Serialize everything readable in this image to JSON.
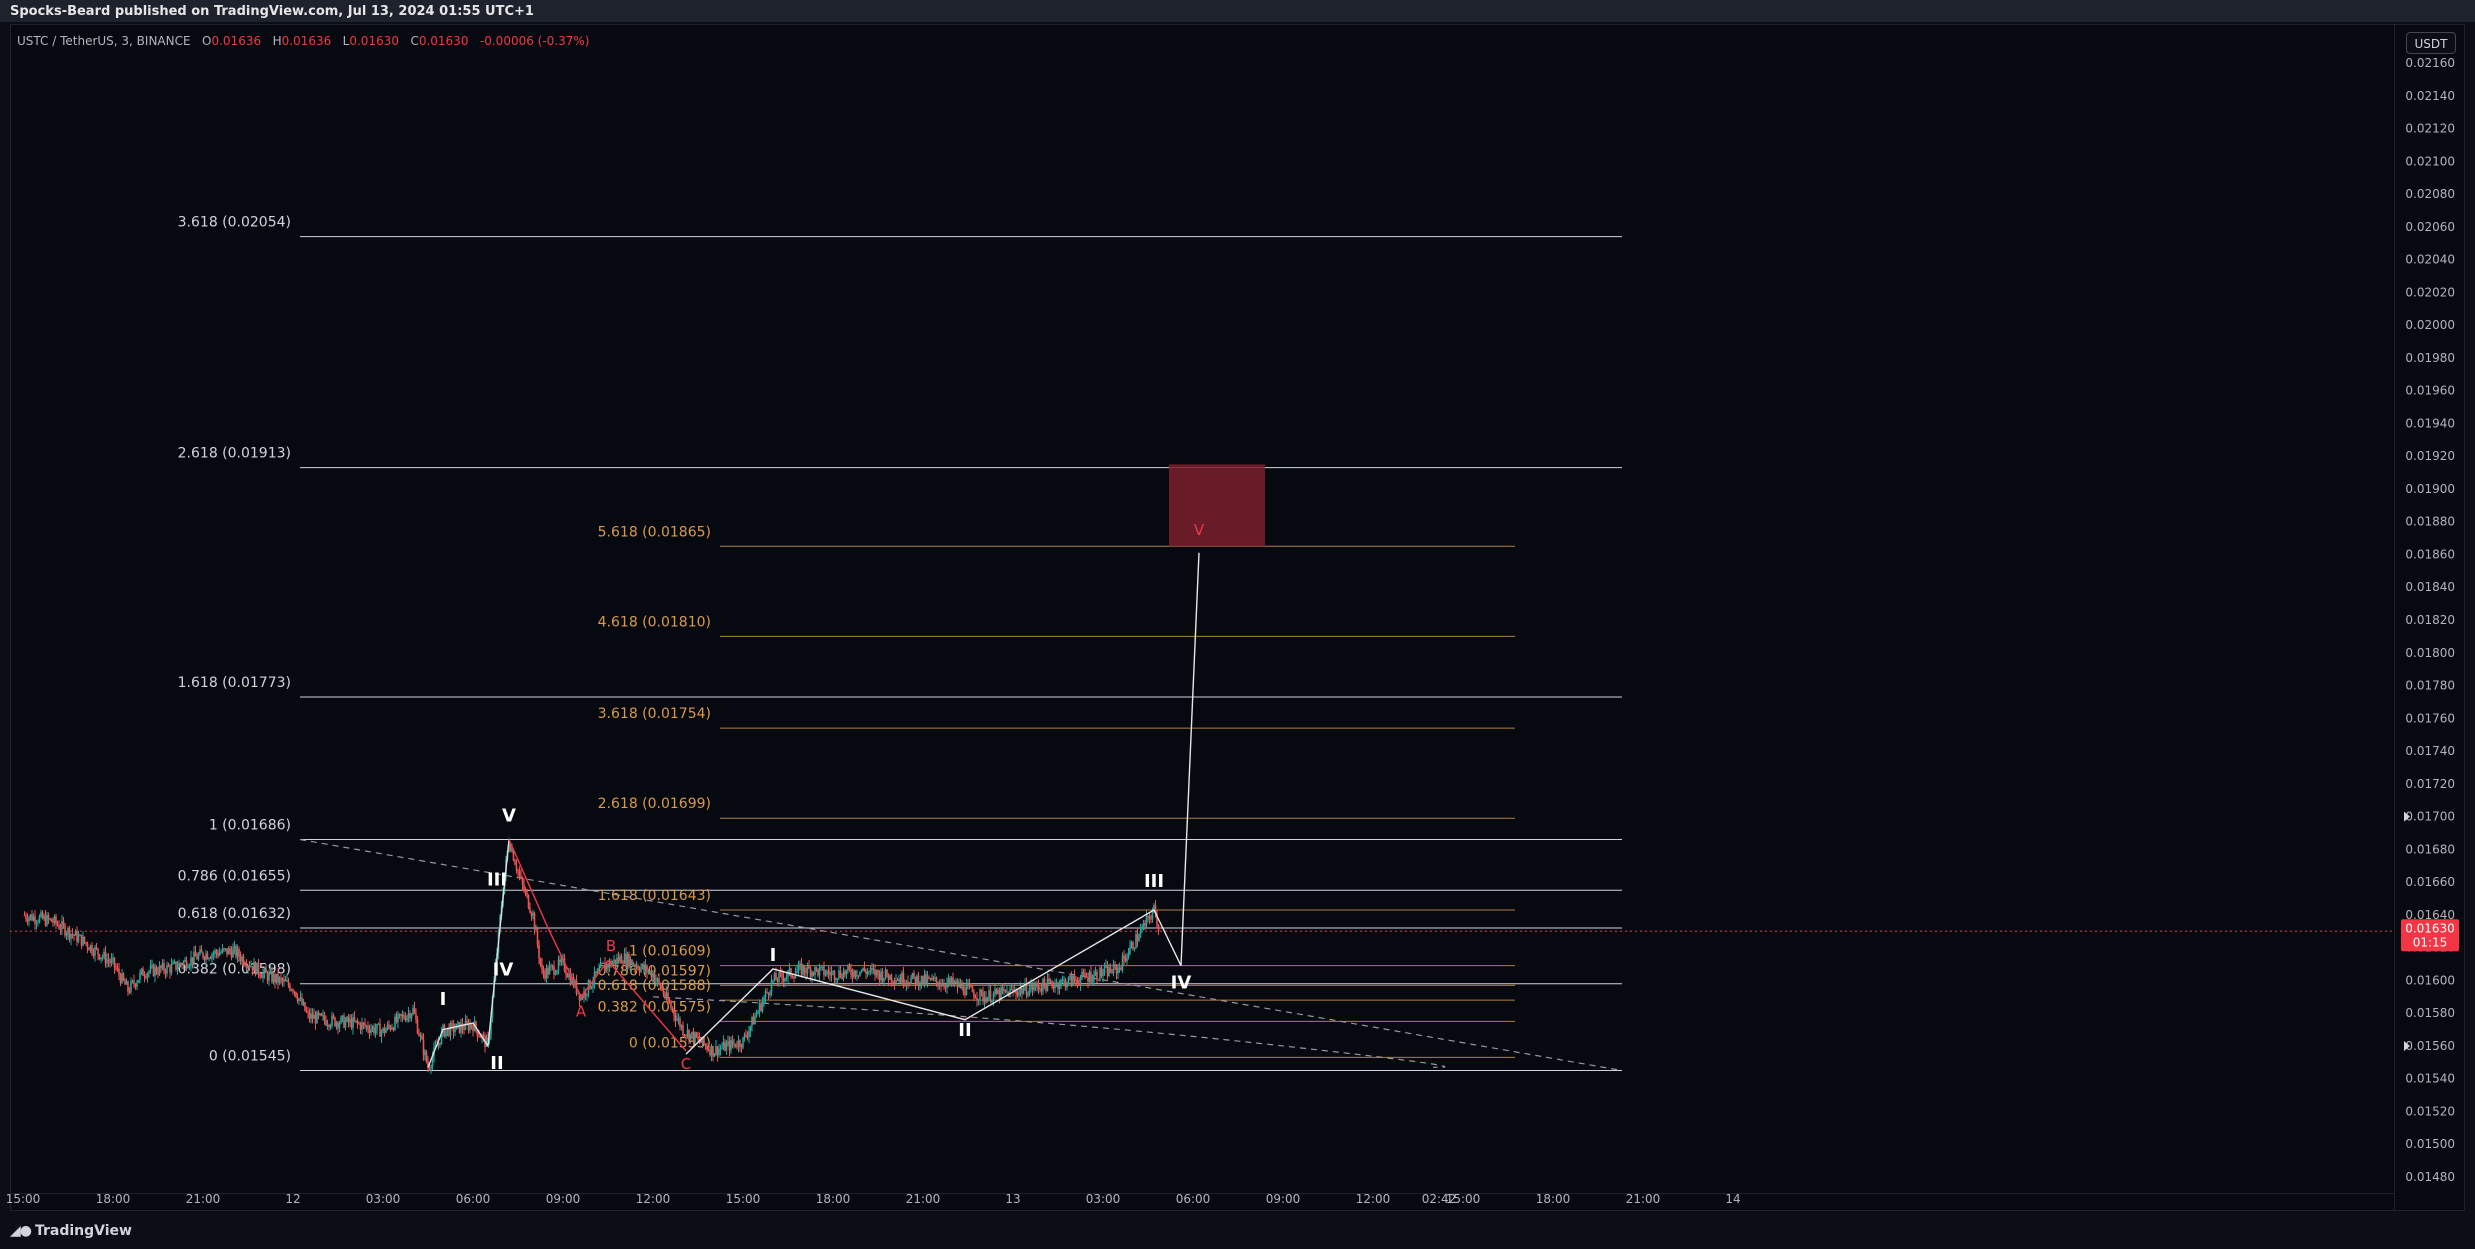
{
  "header": {
    "published_by": "Spocks-Beard published on TradingView.com, Jul 13, 2024 01:55 UTC+1"
  },
  "symbol_bar": {
    "symbol": "USTC / TetherUS, 3, BINANCE",
    "open_label": "O",
    "open": "0.01636",
    "high_label": "H",
    "high": "0.01636",
    "low_label": "L",
    "low": "0.01630",
    "close_label": "C",
    "close": "0.01630",
    "change": "-0.00006 (-0.37%)"
  },
  "currency_button": "USDT",
  "price_tag": {
    "price": "0.01630",
    "countdown": "01:15"
  },
  "footer": {
    "brand": "TradingView"
  },
  "colors": {
    "up": "#26a69a",
    "down": "#ef5350",
    "fib_major": "#d1d4dc",
    "fib_minor": "#d99a4a",
    "target_box": "#7a1f2b",
    "wave_white": "#ffffff",
    "wave_red": "#f23645",
    "price_tag": "#f23645"
  },
  "chart_data": {
    "type": "candlestick",
    "y_axis": {
      "range": [
        0.0147,
        0.02163
      ],
      "ticks": [
        "0.02160",
        "0.02140",
        "0.02120",
        "0.02100",
        "0.02080",
        "0.02060",
        "0.02040",
        "0.02020",
        "0.02000",
        "0.01980",
        "0.01960",
        "0.01940",
        "0.01920",
        "0.01900",
        "0.01880",
        "0.01860",
        "0.01840",
        "0.01820",
        "0.01800",
        "0.01780",
        "0.01760",
        "0.01740",
        "0.01720",
        "0.01700",
        "0.01680",
        "0.01660",
        "0.01640",
        "0.01620",
        "0.01600",
        "0.01580",
        "0.01560",
        "0.01540",
        "0.01520",
        "0.01500",
        "0.01480"
      ]
    },
    "x_axis": {
      "ticks": [
        "15:00",
        "18:00",
        "21:00",
        "12",
        "03:00",
        "06:00",
        "09:00",
        "12:00",
        "15:00",
        "18:00",
        "21:00",
        "13",
        "03:00",
        "06:00",
        "09:00",
        "12:00",
        "15:00",
        "18:00",
        "21:00",
        "14",
        "02:42"
      ],
      "range_hours": [
        -10,
        37.2
      ]
    },
    "current_price": 0.0163,
    "price_path": [
      [
        -10,
        0.0164
      ],
      [
        -9,
        0.01636
      ],
      [
        -8,
        0.01624
      ],
      [
        -7,
        0.0161
      ],
      [
        -6.5,
        0.01594
      ],
      [
        -6,
        0.01605
      ],
      [
        -5,
        0.01608
      ],
      [
        -4,
        0.01616
      ],
      [
        -3,
        0.01618
      ],
      [
        -2,
        0.01604
      ],
      [
        -1,
        0.01596
      ],
      [
        -0.5,
        0.01578
      ],
      [
        0,
        0.01576
      ],
      [
        1,
        0.01574
      ],
      [
        2,
        0.01569
      ],
      [
        3,
        0.01582
      ],
      [
        3.5,
        0.01547
      ],
      [
        4,
        0.01569
      ],
      [
        5,
        0.01573
      ],
      [
        5.5,
        0.0156
      ],
      [
        6,
        0.01656
      ],
      [
        6.2,
        0.01686
      ],
      [
        6.6,
        0.0166
      ],
      [
        7,
        0.0164
      ],
      [
        7.3,
        0.01604
      ],
      [
        8,
        0.0161
      ],
      [
        8.6,
        0.0159
      ],
      [
        9.3,
        0.01608
      ],
      [
        10,
        0.01614
      ],
      [
        11,
        0.01604
      ],
      [
        12,
        0.0157
      ],
      [
        13,
        0.01557
      ],
      [
        14,
        0.01563
      ],
      [
        15,
        0.016
      ],
      [
        16,
        0.01607
      ],
      [
        17,
        0.01604
      ],
      [
        18,
        0.01606
      ],
      [
        19,
        0.01602
      ],
      [
        20,
        0.016
      ],
      [
        21,
        0.01598
      ],
      [
        22,
        0.0159
      ],
      [
        23,
        0.01593
      ],
      [
        24,
        0.01597
      ],
      [
        25,
        0.016
      ],
      [
        26.5,
        0.01607
      ],
      [
        27.7,
        0.01643
      ],
      [
        27.9,
        0.0163
      ]
    ],
    "fibonacci_extension_white": [
      {
        "label": "3.618 (0.02054)",
        "value": 0.02054
      },
      {
        "label": "2.618 (0.01913)",
        "value": 0.01913
      },
      {
        "label": "1.618 (0.01773)",
        "value": 0.01773
      },
      {
        "label": "1 (0.01686)",
        "value": 0.01686
      },
      {
        "label": "0.786 (0.01655)",
        "value": 0.01655
      },
      {
        "label": "0.618 (0.01632)",
        "value": 0.01632
      },
      {
        "label": "0.382 (0.01598)",
        "value": 0.01598
      },
      {
        "label": "0 (0.01545)",
        "value": 0.01545
      }
    ],
    "fibonacci_extension_orange": [
      {
        "label": "5.618 (0.01865)",
        "value": 0.01865
      },
      {
        "label": "4.618 (0.01810)",
        "value": 0.0181
      },
      {
        "label": "3.618 (0.01754)",
        "value": 0.01754
      },
      {
        "label": "2.618 (0.01699)",
        "value": 0.01699
      },
      {
        "label": "1.618 (0.01643)",
        "value": 0.01643
      },
      {
        "label": "1 (0.01609)",
        "value": 0.01609
      },
      {
        "label": "0.786 (0.01597)",
        "value": 0.01597
      },
      {
        "label": "0.618 (0.01588)",
        "value": 0.01588
      },
      {
        "label": "0.382 (0.01575)",
        "value": 0.01575
      },
      {
        "label": "0 (0.01553)",
        "value": 0.01553
      }
    ],
    "target_zone": {
      "from": 0.01865,
      "to": 0.01915,
      "t_from": 28.2,
      "t_to": 31.4
    },
    "wave_labels": [
      {
        "text": "I",
        "t": 4.0,
        "price": 0.01585,
        "color": "white"
      },
      {
        "text": "II",
        "t": 5.8,
        "price": 0.01546,
        "color": "white"
      },
      {
        "text": "III",
        "t": 5.8,
        "price": 0.01658,
        "color": "white"
      },
      {
        "text": "IV",
        "t": 6.0,
        "price": 0.01603,
        "color": "white"
      },
      {
        "text": "V",
        "t": 6.2,
        "price": 0.01697,
        "color": "white"
      },
      {
        "text": "A",
        "t": 8.6,
        "price": 0.01578,
        "color": "red"
      },
      {
        "text": "B",
        "t": 9.6,
        "price": 0.01618,
        "color": "red"
      },
      {
        "text": "C",
        "t": 12.1,
        "price": 0.01546,
        "color": "red"
      },
      {
        "text": "I",
        "t": 15.0,
        "price": 0.01612,
        "color": "white"
      },
      {
        "text": "II",
        "t": 21.4,
        "price": 0.01566,
        "color": "white"
      },
      {
        "text": "III",
        "t": 27.7,
        "price": 0.01657,
        "color": "white"
      },
      {
        "text": "IV",
        "t": 28.6,
        "price": 0.01595,
        "color": "white"
      },
      {
        "text": "V",
        "t": 29.2,
        "price": 0.01872,
        "color": "red"
      }
    ]
  }
}
